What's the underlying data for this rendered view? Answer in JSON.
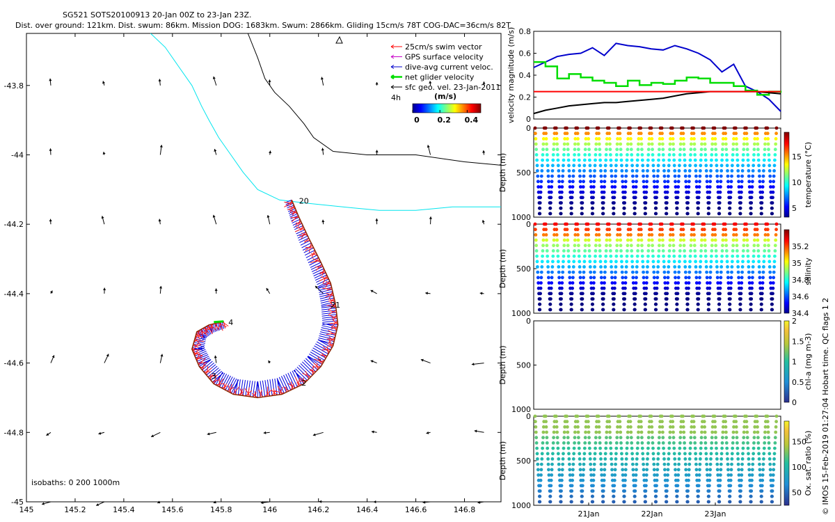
{
  "title": {
    "line1": "SG521 SOTS20100913 20-Jan 00Z to 23-Jan 23Z.",
    "line2": "Dist. over ground: 121km. Dist. swum: 86km. Mission DOG: 1683km. Swum: 2866km. Gliding 15cm/s 78T COG-DAC=36cm/s 82T"
  },
  "side_note": "© IMOS 15-Feb-2019 01:27:04 Hobart time. QC flags 1  2",
  "map": {
    "xticks": [
      "145",
      "145.2",
      "145.4",
      "145.6",
      "145.8",
      "146",
      "146.2",
      "146.4",
      "146.6",
      "146.8"
    ],
    "yticks": [
      "-43.8",
      "-44",
      "-44.2",
      "-44.4",
      "-44.6",
      "-44.8",
      "-45"
    ],
    "xlim": [
      145,
      146.95
    ],
    "ylim": [
      -45,
      -43.65
    ],
    "legend": [
      {
        "label": "25cm/s swim vector",
        "color": "#ff0000"
      },
      {
        "label": "GPS surface velocity",
        "color": "#c800c8"
      },
      {
        "label": "dive-avg current veloc.",
        "color": "#0000cc"
      },
      {
        "label": "net glider velocity",
        "color": "#00dd00"
      },
      {
        "label": "sfc geo. vel. 23-Jan-2011",
        "color": "#000000"
      }
    ],
    "legend_4h": "4h",
    "colorbar": {
      "label": "(m/s)",
      "ticks": [
        "0",
        "0.2",
        "0.4"
      ]
    },
    "isobaths_label": "isobaths: 0   200   1000m",
    "day_labels": [
      {
        "text": "20",
        "lon": 146.12,
        "lat": -44.14
      },
      {
        "text": "21",
        "lon": 146.25,
        "lat": -44.44
      },
      {
        "text": "2",
        "lon": 146.13,
        "lat": -44.665
      },
      {
        "text": "3",
        "lon": 145.76,
        "lat": -44.645
      },
      {
        "text": "4",
        "lon": 145.83,
        "lat": -44.49
      }
    ],
    "track": [
      [
        146.09,
        -44.13
      ],
      [
        146.12,
        -44.18
      ],
      [
        146.16,
        -44.24
      ],
      [
        146.21,
        -44.31
      ],
      [
        146.25,
        -44.37
      ],
      [
        146.27,
        -44.43
      ],
      [
        146.28,
        -44.49
      ],
      [
        146.26,
        -44.55
      ],
      [
        146.21,
        -44.61
      ],
      [
        146.14,
        -44.66
      ],
      [
        146.05,
        -44.69
      ],
      [
        145.95,
        -44.7
      ],
      [
        145.85,
        -44.69
      ],
      [
        145.77,
        -44.66
      ],
      [
        145.71,
        -44.61
      ],
      [
        145.68,
        -44.56
      ],
      [
        145.7,
        -44.51
      ],
      [
        145.75,
        -44.49
      ],
      [
        145.81,
        -44.48
      ]
    ],
    "isobath_200": [
      [
        145.51,
        -43.65
      ],
      [
        145.57,
        -43.69
      ],
      [
        145.62,
        -43.74
      ],
      [
        145.68,
        -43.8
      ],
      [
        145.72,
        -43.86
      ],
      [
        145.75,
        -43.9
      ],
      [
        145.79,
        -43.95
      ],
      [
        145.84,
        -44
      ],
      [
        145.89,
        -44.05
      ],
      [
        145.95,
        -44.1
      ],
      [
        146.04,
        -44.13
      ],
      [
        146.16,
        -44.14
      ],
      [
        146.3,
        -44.15
      ],
      [
        146.45,
        -44.16
      ],
      [
        146.6,
        -44.16
      ],
      [
        146.75,
        -44.15
      ],
      [
        146.95,
        -44.15
      ]
    ],
    "isobath_1000": [
      [
        145.91,
        -43.65
      ],
      [
        145.95,
        -43.72
      ],
      [
        145.98,
        -43.78
      ],
      [
        146.02,
        -43.82
      ],
      [
        146.08,
        -43.86
      ],
      [
        146.14,
        -43.91
      ],
      [
        146.18,
        -43.95
      ],
      [
        146.26,
        -43.99
      ],
      [
        146.4,
        -44.0
      ],
      [
        146.6,
        -44.0
      ],
      [
        146.8,
        -44.02
      ],
      [
        146.95,
        -44.03
      ]
    ]
  },
  "chart_data": [
    {
      "type": "line",
      "ylabel": "velocity magnitude (m/s)",
      "ylim": [
        0,
        0.8
      ],
      "yticks": [
        "0",
        "0.2",
        "0.4",
        "0.6",
        "0.8"
      ],
      "xlim": [
        20,
        24.2
      ],
      "x": [
        20.0,
        20.2,
        20.4,
        20.6,
        20.8,
        21.0,
        21.2,
        21.4,
        21.6,
        21.8,
        22.0,
        22.2,
        22.4,
        22.6,
        22.8,
        23.0,
        23.2,
        23.4,
        23.6,
        23.8,
        24.0,
        24.2
      ],
      "series": [
        {
          "name": "dive-avg current veloc.",
          "color": "#0000cc",
          "values": [
            0.47,
            0.52,
            0.57,
            0.59,
            0.6,
            0.65,
            0.58,
            0.69,
            0.67,
            0.66,
            0.64,
            0.63,
            0.67,
            0.64,
            0.6,
            0.54,
            0.43,
            0.5,
            0.3,
            0.25,
            0.18,
            0.07
          ]
        },
        {
          "name": "net glider velocity",
          "color": "#00dd00",
          "values": [
            0.52,
            0.48,
            0.37,
            0.41,
            0.38,
            0.35,
            0.33,
            0.3,
            0.35,
            0.31,
            0.33,
            0.32,
            0.35,
            0.38,
            0.37,
            0.33,
            0.33,
            0.3,
            0.26,
            0.22,
            0.25,
            0.24
          ]
        },
        {
          "name": "",
          "color": "#000000",
          "values": [
            0.05,
            0.08,
            0.1,
            0.12,
            0.13,
            0.14,
            0.15,
            0.15,
            0.16,
            0.17,
            0.18,
            0.19,
            0.21,
            0.23,
            0.24,
            0.25,
            0.25,
            0.25,
            0.25,
            0.25,
            0.24,
            0.23
          ]
        },
        {
          "name": "",
          "color": "#ff0000",
          "values": [
            0.25,
            0.25,
            0.25,
            0.25,
            0.25,
            0.25,
            0.25,
            0.25,
            0.25,
            0.25,
            0.25,
            0.25,
            0.25,
            0.25,
            0.25,
            0.25,
            0.25,
            0.25,
            0.25,
            0.25,
            0.25,
            0.25
          ]
        }
      ]
    },
    {
      "type": "scatter",
      "variable": "temperature",
      "ylabel": "Depth (m)",
      "clabel": "temperature (°C)",
      "ylim": [
        1000,
        0
      ],
      "yticks": [
        "0",
        "500",
        "1000"
      ],
      "cticks": [
        "5",
        "10",
        "15"
      ],
      "dives": 23
    },
    {
      "type": "scatter",
      "variable": "salinity",
      "ylabel": "Depth (m)",
      "clabel": "salinity",
      "ylim": [
        1000,
        0
      ],
      "yticks": [
        "0",
        "500",
        "1000"
      ],
      "cticks": [
        "34.4",
        "34.6",
        "34.8",
        "35",
        "35.2"
      ],
      "dives": 23
    },
    {
      "type": "scatter",
      "variable": "chl-a",
      "ylabel": "Depth (m)",
      "clabel": "chl-a (mg m-3)",
      "ylim": [
        1000,
        0
      ],
      "yticks": [
        "0",
        "500",
        "1000"
      ],
      "cticks": [
        "0",
        "0.5",
        "1",
        "1.5",
        "2"
      ],
      "dives": 0
    },
    {
      "type": "scatter",
      "variable": "oxygen",
      "ylabel": "Depth (m)",
      "clabel": "Ox. sat. ratio (%)",
      "ylim": [
        1000,
        0
      ],
      "yticks": [
        "0",
        "500",
        "1000"
      ],
      "cticks": [
        "50",
        "100",
        "150"
      ],
      "dives": 23,
      "xticks": [
        "21Jan",
        "22Jan",
        "23Jan"
      ]
    }
  ]
}
